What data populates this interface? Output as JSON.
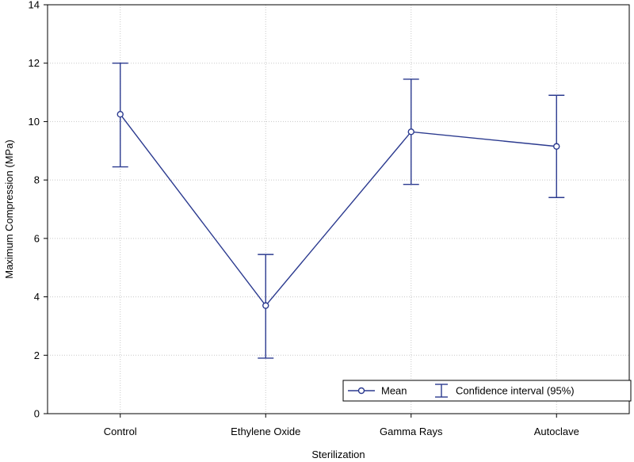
{
  "chart_data": {
    "type": "line",
    "title": "",
    "xlabel": "Sterilization",
    "ylabel": "Maximum Compression (MPa)",
    "categories": [
      "Control",
      "Ethylene Oxide",
      "Gamma Rays",
      "Autoclave"
    ],
    "ylim": [
      0,
      14
    ],
    "yticks": [
      0,
      2,
      4,
      6,
      8,
      10,
      12,
      14
    ],
    "grid": true,
    "legend_position": "bottom-right",
    "series": [
      {
        "name": "Mean",
        "values": [
          10.25,
          3.7,
          9.65,
          9.15
        ],
        "ci_lower": [
          8.45,
          1.9,
          7.85,
          7.4
        ],
        "ci_upper": [
          12.0,
          5.45,
          11.45,
          10.9
        ]
      }
    ],
    "legend": {
      "mean_label": "Mean",
      "ci_label": "Confidence interval (95%)"
    },
    "colors": {
      "series": "#2b3a8f",
      "grid": "#c8c8c8",
      "axis": "#000000"
    }
  }
}
